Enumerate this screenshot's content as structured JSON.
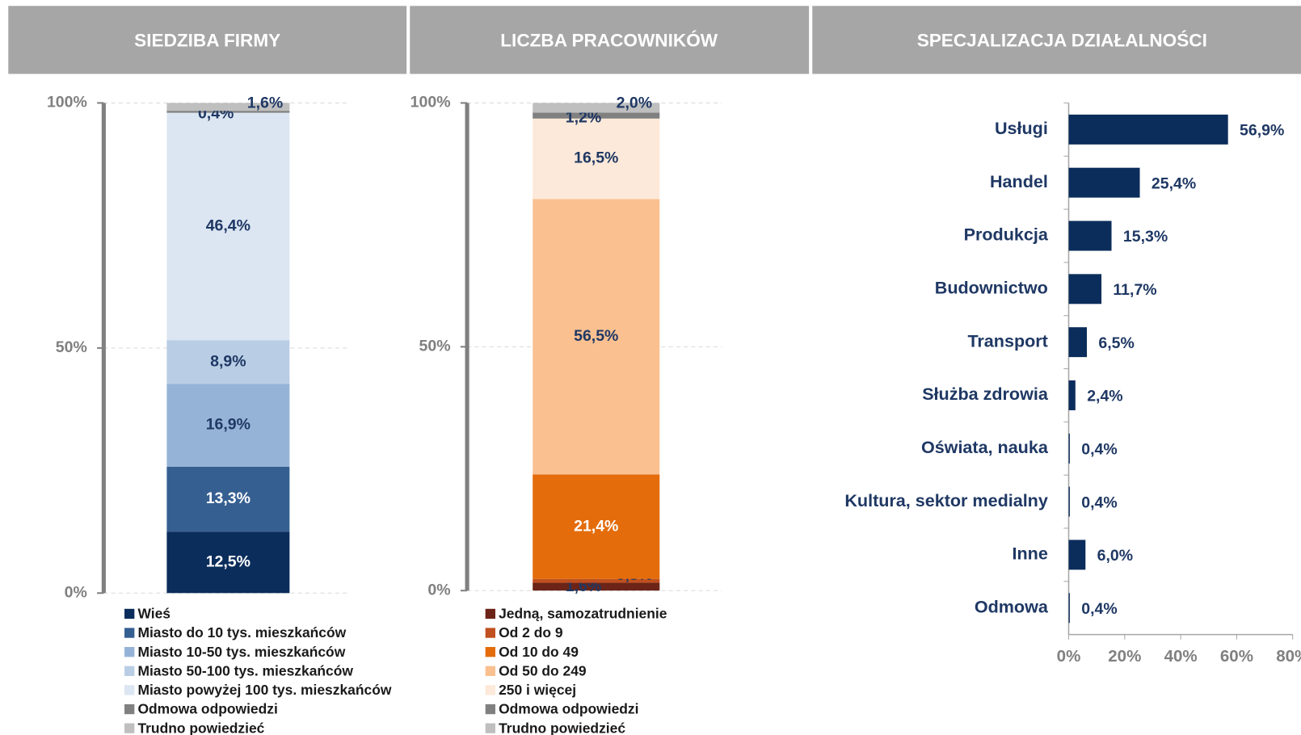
{
  "chart_data": [
    {
      "type": "stacked_bar",
      "title": "SIEDZIBA FIRMY",
      "categories": [
        null
      ],
      "ylim": [
        0,
        100
      ],
      "yticks": [
        {
          "value": 0,
          "label": "0%"
        },
        {
          "value": 50,
          "label": "50%"
        },
        {
          "value": 100,
          "label": "100%"
        }
      ],
      "grid": true,
      "legend": "bottom",
      "series": [
        {
          "name": "Wieś",
          "color": "#0b2d5b",
          "values": [
            12.5
          ],
          "value_labels": [
            "12,5%"
          ]
        },
        {
          "name": "Miasto do 10 tys. mieszkańców",
          "color": "#365f91",
          "values": [
            13.3
          ],
          "value_labels": [
            "13,3%"
          ]
        },
        {
          "name": "Miasto 10-50 tys. mieszkańców",
          "color": "#95b3d7",
          "values": [
            16.9
          ],
          "value_labels": [
            "16,9%"
          ]
        },
        {
          "name": "Miasto 50-100 tys. mieszkańców",
          "color": "#b9cde5",
          "values": [
            8.9
          ],
          "value_labels": [
            "8,9%"
          ]
        },
        {
          "name": "Miasto powyżej 100 tys. mieszkańców",
          "color": "#dce6f2",
          "values": [
            46.4
          ],
          "value_labels": [
            "46,4%"
          ]
        },
        {
          "name": "Odmowa odpowiedzi",
          "color": "#808080",
          "values": [
            0.4
          ],
          "value_labels": [
            "0,4%"
          ]
        },
        {
          "name": "Trudno powiedzieć",
          "color": "#bfbfbf",
          "values": [
            1.6
          ],
          "value_labels": [
            "1,6%"
          ]
        }
      ]
    },
    {
      "type": "stacked_bar",
      "title": "LICZBA PRACOWNIKÓW",
      "categories": [
        null
      ],
      "ylim": [
        0,
        100
      ],
      "yticks": [
        {
          "value": 0,
          "label": "0%"
        },
        {
          "value": 50,
          "label": "50%"
        },
        {
          "value": 100,
          "label": "100%"
        }
      ],
      "grid": true,
      "legend": "bottom",
      "series": [
        {
          "name": "Jedną, samozatrudnienie",
          "color": "#6b2417",
          "values": [
            1.6
          ],
          "value_labels": [
            "1,6%"
          ]
        },
        {
          "name": "Od 2 do 9",
          "color": "#c0501f",
          "values": [
            0.8
          ],
          "value_labels": [
            "0,8%"
          ]
        },
        {
          "name": "Od 10 do 49",
          "color": "#e46c0a",
          "values": [
            21.4
          ],
          "value_labels": [
            "21,4%"
          ]
        },
        {
          "name": "Od 50 do 249",
          "color": "#fac090",
          "values": [
            56.5
          ],
          "value_labels": [
            "56,5%"
          ]
        },
        {
          "name": "250 i więcej",
          "color": "#fde9d9",
          "values": [
            16.5
          ],
          "value_labels": [
            "16,5%"
          ]
        },
        {
          "name": "Odmowa odpowiedzi",
          "color": "#808080",
          "values": [
            1.2
          ],
          "value_labels": [
            "1,2%"
          ]
        },
        {
          "name": "Trudno powiedzieć",
          "color": "#bfbfbf",
          "values": [
            2.0
          ],
          "value_labels": [
            "2,0%"
          ]
        }
      ]
    },
    {
      "type": "barh",
      "title": "SPECJALIZACJA DZIAŁALNOŚCI",
      "color": "#0b2d5b",
      "categories": [
        "Usługi",
        "Handel",
        "Produkcja",
        "Budownictwo",
        "Transport",
        "Służba zdrowia",
        "Oświata, nauka",
        "Kultura, sektor medialny",
        "Inne",
        "Odmowa"
      ],
      "values": [
        56.9,
        25.4,
        15.3,
        11.7,
        6.5,
        2.4,
        0.4,
        0.4,
        6.0,
        0.4
      ],
      "value_labels": [
        "56,9%",
        "25,4%",
        "15,3%",
        "11,7%",
        "6,5%",
        "2,4%",
        "0,4%",
        "0,4%",
        "6,0%",
        "0,4%"
      ],
      "xlim": [
        0,
        80
      ],
      "xticks": [
        {
          "value": 0,
          "label": "0%"
        },
        {
          "value": 20,
          "label": "20%"
        },
        {
          "value": 40,
          "label": "40%"
        },
        {
          "value": 60,
          "label": "60%"
        },
        {
          "value": 80,
          "label": "80%"
        }
      ]
    }
  ]
}
